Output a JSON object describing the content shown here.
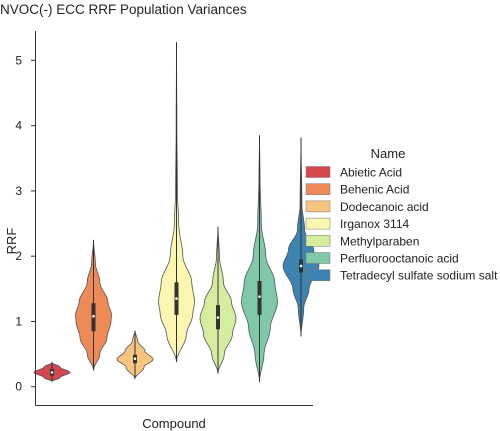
{
  "chart_data": {
    "type": "violin",
    "title": "NVOC(-) ECC RRF Population Variances",
    "xlabel": "Compound",
    "ylabel": "RRF",
    "ylim": [
      -0.28,
      5.45
    ],
    "yticks": [
      0,
      1,
      2,
      3,
      4,
      5
    ],
    "grid": false,
    "legend": {
      "title": "Name",
      "position": "right"
    },
    "series": [
      {
        "name": "Abietic Acid",
        "color": "#d5474f",
        "min": 0.08,
        "max": 0.37,
        "q1": 0.17,
        "median": 0.22,
        "q3": 0.27,
        "density": [
          [
            0.08,
            0.0
          ],
          [
            0.14,
            0.45
          ],
          [
            0.22,
            1.0
          ],
          [
            0.3,
            0.45
          ],
          [
            0.37,
            0.0
          ]
        ]
      },
      {
        "name": "Behenic Acid",
        "color": "#ee8a55",
        "min": 0.25,
        "max": 2.25,
        "q1": 0.85,
        "median": 1.08,
        "q3": 1.28,
        "density": [
          [
            0.25,
            0.0
          ],
          [
            0.5,
            0.35
          ],
          [
            0.75,
            0.75
          ],
          [
            1.0,
            0.97
          ],
          [
            1.1,
            1.0
          ],
          [
            1.3,
            0.8
          ],
          [
            1.6,
            0.35
          ],
          [
            1.9,
            0.1
          ],
          [
            2.25,
            0.0
          ]
        ]
      },
      {
        "name": "Dodecanoic acid",
        "color": "#f7c57e",
        "min": 0.12,
        "max": 0.86,
        "q1": 0.36,
        "median": 0.43,
        "q3": 0.49,
        "density": [
          [
            0.12,
            0.0
          ],
          [
            0.3,
            0.5
          ],
          [
            0.42,
            1.0
          ],
          [
            0.55,
            0.55
          ],
          [
            0.7,
            0.15
          ],
          [
            0.86,
            0.0
          ]
        ]
      },
      {
        "name": "Irganox 3114",
        "color": "#fbf6b0",
        "min": 0.38,
        "max": 5.28,
        "q1": 1.1,
        "median": 1.35,
        "q3": 1.6,
        "density": [
          [
            0.38,
            0.0
          ],
          [
            0.8,
            0.55
          ],
          [
            1.1,
            0.9
          ],
          [
            1.3,
            1.0
          ],
          [
            1.6,
            0.85
          ],
          [
            2.0,
            0.35
          ],
          [
            2.5,
            0.12
          ],
          [
            3.0,
            0.05
          ],
          [
            4.0,
            0.02
          ],
          [
            5.28,
            0.0
          ]
        ]
      },
      {
        "name": "Methylparaben",
        "color": "#d6ec9f",
        "min": 0.2,
        "max": 2.45,
        "q1": 0.88,
        "median": 1.06,
        "q3": 1.25,
        "density": [
          [
            0.2,
            0.0
          ],
          [
            0.5,
            0.35
          ],
          [
            0.8,
            0.8
          ],
          [
            1.05,
            1.0
          ],
          [
            1.3,
            0.75
          ],
          [
            1.6,
            0.3
          ],
          [
            2.0,
            0.08
          ],
          [
            2.45,
            0.0
          ]
        ]
      },
      {
        "name": "Perfluorooctanoic acid",
        "color": "#7fc9a8",
        "min": 0.07,
        "max": 3.85,
        "q1": 1.1,
        "median": 1.38,
        "q3": 1.62,
        "density": [
          [
            0.07,
            0.0
          ],
          [
            0.5,
            0.25
          ],
          [
            0.9,
            0.6
          ],
          [
            1.3,
            1.0
          ],
          [
            1.6,
            0.85
          ],
          [
            2.0,
            0.35
          ],
          [
            2.5,
            0.1
          ],
          [
            3.2,
            0.03
          ],
          [
            3.85,
            0.0
          ]
        ]
      },
      {
        "name": "Tetradecyl sulfate sodium salt",
        "color": "#3d83b2",
        "min": 0.77,
        "max": 3.82,
        "q1": 1.75,
        "median": 1.85,
        "q3": 1.95,
        "density": [
          [
            0.77,
            0.0
          ],
          [
            1.2,
            0.15
          ],
          [
            1.5,
            0.45
          ],
          [
            1.85,
            1.0
          ],
          [
            2.1,
            0.7
          ],
          [
            2.4,
            0.2
          ],
          [
            2.8,
            0.05
          ],
          [
            3.82,
            0.0
          ]
        ]
      }
    ]
  }
}
